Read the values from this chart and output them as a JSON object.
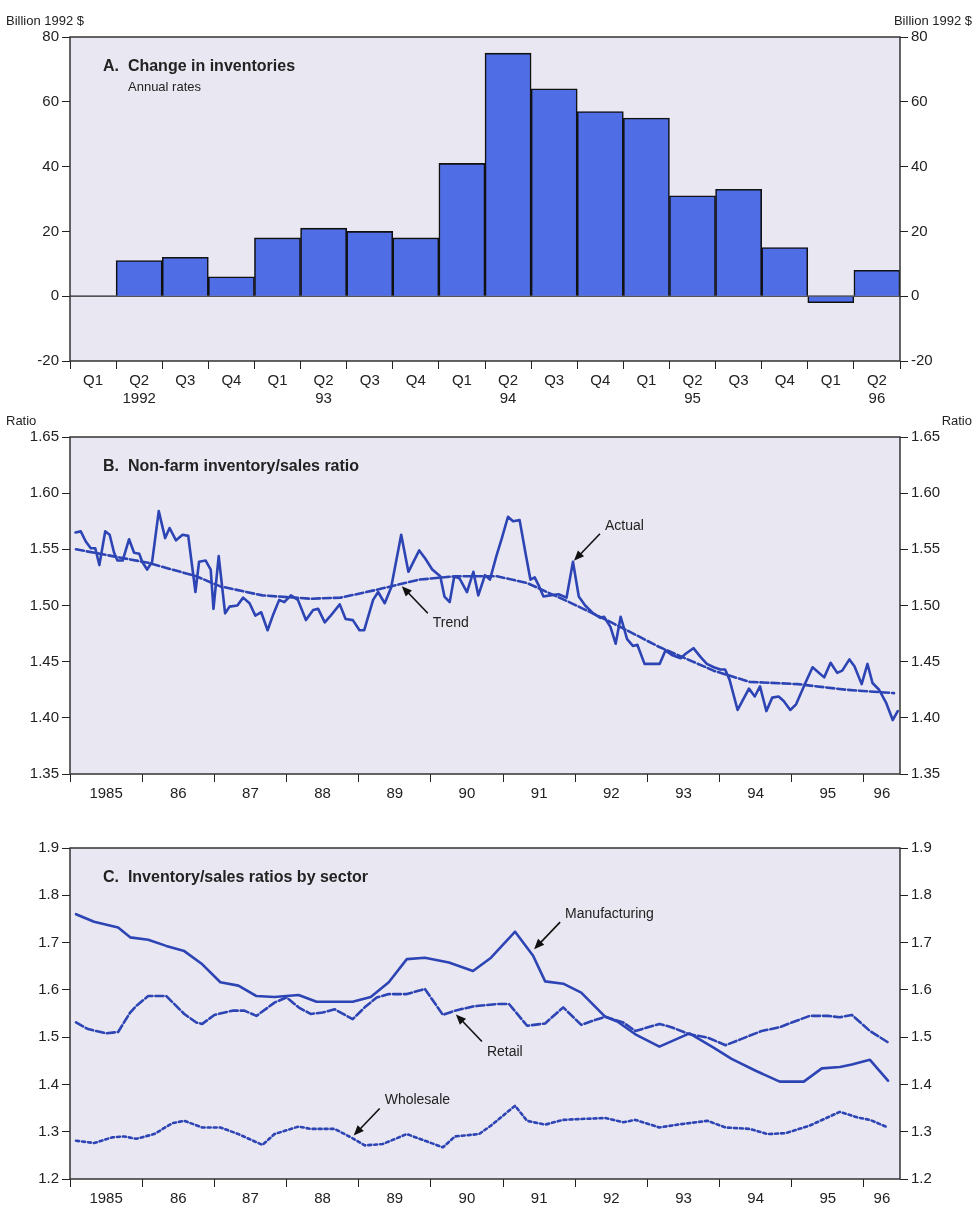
{
  "chart_data": [
    {
      "type": "bar",
      "title": "A.  Change in inventories",
      "subtitle": "Annual rates",
      "ylabel": "Billion 1992 $",
      "y2label": "Billion 1992 $",
      "categories": [
        "Q1",
        "Q2\n1992",
        "Q3",
        "Q4",
        "Q1",
        "Q2\n93",
        "Q3",
        "Q4",
        "Q1",
        "Q2\n94",
        "Q3",
        "Q4",
        "Q1",
        "Q2\n95",
        "Q3",
        "Q4",
        "Q1",
        "Q2\n96"
      ],
      "values": [
        null,
        11,
        12,
        6,
        18,
        21,
        20,
        18,
        41,
        75,
        64,
        57,
        55,
        31,
        33,
        15,
        -2,
        8
      ],
      "color": "#4f6ee6",
      "ylim": [
        -20,
        80
      ],
      "yticks": [
        -20,
        0,
        20,
        40,
        60,
        80
      ],
      "y2lim": [
        -20,
        80
      ],
      "y2ticks": [
        -20,
        0,
        20,
        40,
        60,
        80
      ],
      "ref_lines": [
        {
          "axis": "y",
          "value": 0,
          "color": "#222222"
        }
      ]
    },
    {
      "type": "line",
      "title": "B.  Non-farm inventory/sales ratio",
      "ylabel": "Ratio",
      "y2label": "Ratio",
      "xlim": [
        "1985-01",
        "1996-07"
      ],
      "xticks": [
        {
          "value": "1985-01",
          "label": null
        },
        {
          "value": "1985-07",
          "label": "1985"
        },
        {
          "value": "1986-01",
          "label": null
        },
        {
          "value": "1986-07",
          "label": "86"
        },
        {
          "value": "1987-01",
          "label": null
        },
        {
          "value": "1987-07",
          "label": "87"
        },
        {
          "value": "1988-01",
          "label": null
        },
        {
          "value": "1988-07",
          "label": "88"
        },
        {
          "value": "1989-01",
          "label": null
        },
        {
          "value": "1989-07",
          "label": "89"
        },
        {
          "value": "1990-01",
          "label": null
        },
        {
          "value": "1990-07",
          "label": "90"
        },
        {
          "value": "1991-01",
          "label": null
        },
        {
          "value": "1991-07",
          "label": "91"
        },
        {
          "value": "1992-01",
          "label": null
        },
        {
          "value": "1992-07",
          "label": "92"
        },
        {
          "value": "1993-01",
          "label": null
        },
        {
          "value": "1993-07",
          "label": "93"
        },
        {
          "value": "1994-01",
          "label": null
        },
        {
          "value": "1994-07",
          "label": "94"
        },
        {
          "value": "1995-01",
          "label": null
        },
        {
          "value": "1995-07",
          "label": "95"
        },
        {
          "value": "1996-01",
          "label": null
        },
        {
          "value": "1996-04",
          "label": "96"
        }
      ],
      "ylim": [
        1.35,
        1.65
      ],
      "yticks": [
        1.35,
        {
          "value": 1.4,
          "label": "1.40"
        },
        1.45,
        {
          "value": 1.5,
          "label": "1.50"
        },
        1.55,
        {
          "value": 1.6,
          "label": "1.60"
        },
        1.65
      ],
      "y2lim": [
        1.35,
        1.65
      ],
      "y2ticks": [
        1.35,
        {
          "value": 1.4,
          "label": "1.40"
        },
        1.45,
        {
          "value": 1.5,
          "label": "1.50"
        },
        1.55,
        {
          "value": 1.6,
          "label": "1.60"
        },
        1.65
      ],
      "series": [
        {
          "color": "#2d44b5",
          "line_style": "solid",
          "x": [
            "1985-01-29",
            "1985-02-25",
            "1985-03-20",
            "1985-04-15",
            "1985-05-07",
            "1985-05-28",
            "1985-06-27",
            "1985-07-19",
            "1985-08-11",
            "1985-08-28",
            "1985-09-24",
            "1985-10-26",
            "1985-11-21",
            "1985-12-17",
            "1986-01-01",
            "1986-01-26",
            "1986-02-21",
            "1986-03-24",
            "1986-04-26",
            "1986-05-18",
            "1986-06-20",
            "1986-07-23",
            "1986-08-21",
            "1986-09-27",
            "1986-10-15",
            "1986-11-18",
            "1986-12-13",
            "1986-12-27",
            "1987-01-23",
            "1987-02-25",
            "1987-03-17",
            "1987-04-26",
            "1987-05-25",
            "1987-06-27",
            "1987-07-26",
            "1987-08-25",
            "1987-09-27",
            "1987-10-23",
            "1987-11-25",
            "1987-12-20",
            "1988-01-23",
            "1988-02-28",
            "1988-04-08",
            "1988-05-14",
            "1988-06-09",
            "1988-07-12",
            "1988-08-07",
            "1988-09-27",
            "1988-10-26",
            "1988-12-02",
            "1989-01-05",
            "1989-01-29",
            "1989-03-13",
            "1989-04-08",
            "1989-05-11",
            "1989-06-13",
            "1989-08-03",
            "1989-09-09",
            "1989-11-03",
            "1989-12-02",
            "1990-01-08",
            "1990-02-18",
            "1990-03-09",
            "1990-04-05",
            "1990-04-28",
            "1990-05-25",
            "1990-07-01",
            "1990-08-03",
            "1990-08-28",
            "1990-10-01",
            "1990-10-26",
            "1990-11-28",
            "1990-12-24",
            "1991-01-26",
            "1991-02-21",
            "1991-03-24",
            "1991-04-23",
            "1991-05-18",
            "1991-06-09",
            "1991-07-01",
            "1991-07-23",
            "1991-08-25",
            "1991-10-08",
            "1991-11-18",
            "1991-12-20",
            "1992-01-19",
            "1992-02-21",
            "1992-04-01",
            "1992-05-07",
            "1992-05-25",
            "1992-06-27",
            "1992-07-23",
            "1992-08-18",
            "1992-09-20",
            "1992-10-19",
            "1992-11-11",
            "1992-12-17",
            "1993-02-03",
            "1993-03-02",
            "1993-04-01",
            "1993-05-03",
            "1993-06-17",
            "1993-07-12",
            "1993-08-21",
            "1993-09-27",
            "1993-10-28",
            "1993-12-02",
            "1994-01-05",
            "1994-01-29",
            "1994-02-21",
            "1994-04-01",
            "1994-05-28",
            "1994-06-27",
            "1994-07-23",
            "1994-08-25",
            "1994-09-24",
            "1994-10-26",
            "1994-11-21",
            "1994-12-24",
            "1995-01-23",
            "1995-03-09",
            "1995-04-15",
            "1995-06-13",
            "1995-07-15",
            "1995-08-18",
            "1995-09-13",
            "1995-10-19",
            "1995-11-14",
            "1995-12-20",
            "1996-01-19",
            "1996-02-14",
            "1996-03-17",
            "1996-04-23",
            "1996-05-25",
            "1996-06-20"
          ],
          "values": [
            1.565,
            1.566,
            1.557,
            1.551,
            1.551,
            1.536,
            1.566,
            1.563,
            1.547,
            1.54,
            1.54,
            1.559,
            1.547,
            1.546,
            1.539,
            1.532,
            1.539,
            1.584,
            1.56,
            1.569,
            1.558,
            1.563,
            1.562,
            1.512,
            1.539,
            1.54,
            1.532,
            1.497,
            1.544,
            1.493,
            1.499,
            1.5,
            1.507,
            1.502,
            1.491,
            1.494,
            1.478,
            1.491,
            1.505,
            1.503,
            1.509,
            1.505,
            1.487,
            1.496,
            1.497,
            1.485,
            1.49,
            1.501,
            1.488,
            1.487,
            1.478,
            1.478,
            1.505,
            1.512,
            1.502,
            1.516,
            1.563,
            1.53,
            1.549,
            1.542,
            1.532,
            1.526,
            1.508,
            1.503,
            1.526,
            1.524,
            1.512,
            1.53,
            1.509,
            1.527,
            1.523,
            1.544,
            1.559,
            1.579,
            1.575,
            1.576,
            1.547,
            1.523,
            1.525,
            1.517,
            1.508,
            1.509,
            1.51,
            1.507,
            1.539,
            1.508,
            1.5,
            1.493,
            1.489,
            1.49,
            1.481,
            1.466,
            1.49,
            1.47,
            1.464,
            1.465,
            1.448,
            1.448,
            1.448,
            1.46,
            1.456,
            1.453,
            1.457,
            1.462,
            1.454,
            1.448,
            1.445,
            1.443,
            1.443,
            1.434,
            1.407,
            1.426,
            1.419,
            1.428,
            1.406,
            1.418,
            1.419,
            1.415,
            1.407,
            1.412,
            1.431,
            1.445,
            1.436,
            1.449,
            1.44,
            1.442,
            1.452,
            1.446,
            1.43,
            1.448,
            1.431,
            1.425,
            1.413,
            1.398,
            1.406
          ]
        },
        {
          "color": "#2d44b5",
          "line_style": "dashed",
          "x": [
            "1985-02",
            "1985-07",
            "1986-02",
            "1986-10",
            "1987-02",
            "1987-09",
            "1988-05",
            "1988-10",
            "1989-04",
            "1989-11",
            "1990-05",
            "1990-12",
            "1991-05",
            "1991-12",
            "1992-07",
            "1993-03",
            "1993-12",
            "1994-06",
            "1995-02",
            "1995-10",
            "1996-06"
          ],
          "values": [
            1.55,
            1.545,
            1.538,
            1.526,
            1.517,
            1.509,
            1.506,
            1.507,
            1.514,
            1.523,
            1.526,
            1.526,
            1.52,
            1.503,
            1.485,
            1.463,
            1.442,
            1.432,
            1.43,
            1.425,
            1.422
          ]
        }
      ],
      "annotations": [
        {
          "text": "Actual",
          "x": "1991-12-20",
          "y": 1.539
        },
        {
          "text": "Trend",
          "x": "1989-08",
          "y": 1.518
        }
      ]
    },
    {
      "type": "line",
      "title": "C.  Inventory/sales ratios by sector",
      "xlim": [
        "1985-01",
        "1996-07"
      ],
      "xticks": [
        {
          "value": "1985-01",
          "label": null
        },
        {
          "value": "1985-07",
          "label": "1985"
        },
        {
          "value": "1986-01",
          "label": null
        },
        {
          "value": "1986-07",
          "label": "86"
        },
        {
          "value": "1987-01",
          "label": null
        },
        {
          "value": "1987-07",
          "label": "87"
        },
        {
          "value": "1988-01",
          "label": null
        },
        {
          "value": "1988-07",
          "label": "88"
        },
        {
          "value": "1989-01",
          "label": null
        },
        {
          "value": "1989-07",
          "label": "89"
        },
        {
          "value": "1990-01",
          "label": null
        },
        {
          "value": "1990-07",
          "label": "90"
        },
        {
          "value": "1991-01",
          "label": null
        },
        {
          "value": "1991-07",
          "label": "91"
        },
        {
          "value": "1992-01",
          "label": null
        },
        {
          "value": "1992-07",
          "label": "92"
        },
        {
          "value": "1993-01",
          "label": null
        },
        {
          "value": "1993-07",
          "label": "93"
        },
        {
          "value": "1994-01",
          "label": null
        },
        {
          "value": "1994-07",
          "label": "94"
        },
        {
          "value": "1995-01",
          "label": null
        },
        {
          "value": "1995-07",
          "label": "95"
        },
        {
          "value": "1996-01",
          "label": null
        },
        {
          "value": "1996-04",
          "label": "96"
        }
      ],
      "ylim": [
        1.2,
        1.9
      ],
      "yticks": [
        1.2,
        1.3,
        1.4,
        1.5,
        1.6,
        1.7,
        1.8,
        1.9
      ],
      "y2lim": [
        1.2,
        1.9
      ],
      "y2ticks": [
        1.2,
        1.3,
        1.4,
        1.5,
        1.6,
        1.7,
        1.8,
        1.9
      ],
      "series": [
        {
          "color": "#2d44b5",
          "line_style": "solid",
          "x": [
            "1985-02",
            "1985-05",
            "1985-09",
            "1985-11",
            "1986-02",
            "1986-05",
            "1986-08",
            "1986-11",
            "1987-02",
            "1987-05",
            "1987-08",
            "1987-11",
            "1988-03",
            "1988-06",
            "1988-10",
            "1988-12",
            "1989-03",
            "1989-06",
            "1989-09",
            "1989-12",
            "1990-04",
            "1990-08",
            "1990-11",
            "1991-03",
            "1991-06",
            "1991-08",
            "1991-11",
            "1992-02",
            "1992-06",
            "1992-08",
            "1992-11",
            "1993-03",
            "1993-08",
            "1993-12",
            "1994-03",
            "1994-07",
            "1994-11",
            "1995-03",
            "1995-06",
            "1995-09",
            "1995-11",
            "1996-02",
            "1996-05"
          ],
          "values": [
            1.76,
            1.744,
            1.732,
            1.711,
            1.706,
            1.693,
            1.682,
            1.654,
            1.616,
            1.609,
            1.587,
            1.585,
            1.589,
            1.575,
            1.575,
            1.575,
            1.585,
            1.616,
            1.665,
            1.668,
            1.658,
            1.64,
            1.668,
            1.723,
            1.672,
            1.618,
            1.613,
            1.594,
            1.543,
            1.533,
            1.506,
            1.48,
            1.508,
            1.478,
            1.454,
            1.429,
            1.406,
            1.406,
            1.434,
            1.437,
            1.442,
            1.452,
            1.408
          ]
        },
        {
          "color": "#2d44b5",
          "line_style": "dashed",
          "x": [
            "1985-02",
            "1985-04",
            "1985-07",
            "1985-09",
            "1985-11",
            "1985-12",
            "1986-02",
            "1986-05",
            "1986-08",
            "1986-10",
            "1986-11",
            "1987-01",
            "1987-04",
            "1987-06",
            "1987-08",
            "1987-11",
            "1988-01",
            "1988-03",
            "1988-05",
            "1988-07",
            "1988-09",
            "1988-12",
            "1989-02",
            "1989-04",
            "1989-06",
            "1989-09",
            "1989-12",
            "1990-03",
            "1990-05",
            "1990-08",
            "1990-12",
            "1991-02",
            "1991-05",
            "1991-08",
            "1991-11",
            "1992-02",
            "1992-04",
            "1992-06",
            "1992-09",
            "1992-11",
            "1993-03",
            "1993-05",
            "1993-08",
            "1993-11",
            "1994-02",
            "1994-05",
            "1994-08",
            "1994-11",
            "1995-01",
            "1995-04",
            "1995-07",
            "1995-09",
            "1995-11",
            "1996-02",
            "1996-05"
          ],
          "values": [
            1.531,
            1.517,
            1.508,
            1.511,
            1.552,
            1.566,
            1.587,
            1.587,
            1.549,
            1.531,
            1.528,
            1.547,
            1.556,
            1.556,
            1.545,
            1.573,
            1.584,
            1.563,
            1.549,
            1.552,
            1.559,
            1.538,
            1.563,
            1.584,
            1.591,
            1.591,
            1.602,
            1.547,
            1.556,
            1.565,
            1.57,
            1.57,
            1.524,
            1.529,
            1.563,
            1.526,
            1.535,
            1.543,
            1.531,
            1.513,
            1.528,
            1.521,
            1.506,
            1.499,
            1.483,
            1.498,
            1.513,
            1.521,
            1.531,
            1.545,
            1.545,
            1.542,
            1.547,
            1.513,
            1.489
          ]
        },
        {
          "color": "#2d44b5",
          "line_style": "dotted",
          "x": [
            "1985-02",
            "1985-05",
            "1985-08",
            "1985-10",
            "1985-12",
            "1986-03",
            "1986-06",
            "1986-08",
            "1986-11",
            "1987-02",
            "1987-05",
            "1987-09",
            "1987-11",
            "1988-03",
            "1988-05",
            "1988-09",
            "1988-12",
            "1989-02",
            "1989-05",
            "1989-09",
            "1989-12",
            "1990-03",
            "1990-05",
            "1990-09",
            "1990-11",
            "1991-03",
            "1991-05",
            "1991-08",
            "1991-11",
            "1992-02",
            "1992-06",
            "1992-09",
            "1992-11",
            "1993-03",
            "1993-06",
            "1993-11",
            "1994-02",
            "1994-06",
            "1994-09",
            "1994-12",
            "1995-04",
            "1995-09",
            "1995-12",
            "1996-02",
            "1996-05"
          ],
          "values": [
            1.281,
            1.276,
            1.288,
            1.29,
            1.285,
            1.295,
            1.318,
            1.323,
            1.309,
            1.309,
            1.295,
            1.272,
            1.295,
            1.311,
            1.306,
            1.306,
            1.286,
            1.271,
            1.274,
            1.295,
            1.281,
            1.267,
            1.29,
            1.295,
            1.313,
            1.355,
            1.323,
            1.315,
            1.325,
            1.327,
            1.329,
            1.32,
            1.325,
            1.309,
            1.315,
            1.323,
            1.309,
            1.306,
            1.295,
            1.297,
            1.313,
            1.342,
            1.33,
            1.325,
            1.309
          ]
        }
      ],
      "annotations": [
        {
          "text": "Manufacturing",
          "x": "1991-06",
          "y": 1.684
        },
        {
          "text": "Retail",
          "x": "1990-05",
          "y": 1.55
        },
        {
          "text": "Wholesale",
          "x": "1988-12",
          "y": 1.29
        }
      ]
    }
  ]
}
